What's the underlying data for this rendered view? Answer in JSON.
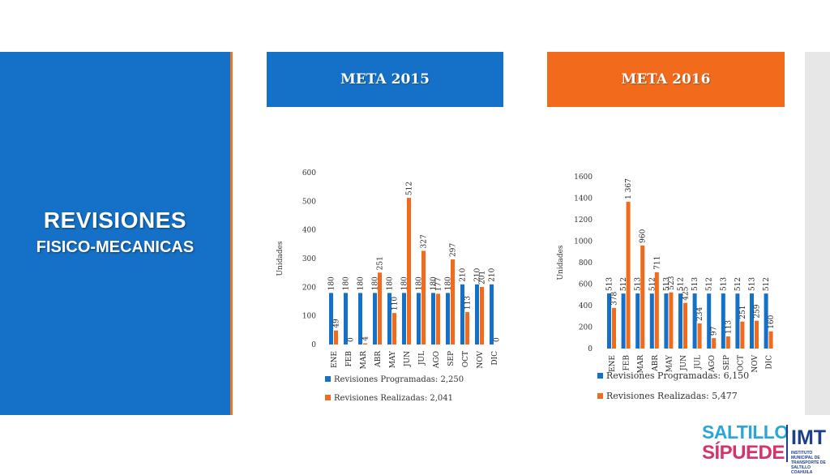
{
  "slide": {
    "title_line1": "REVISIONES",
    "title_line2": "FISICO-MECANICAS",
    "meta_2015": "META 2015",
    "meta_2016": "META 2016"
  },
  "logo": {
    "line1": "SALTILLO",
    "line2": "SÍPUEDE",
    "org": "IMT",
    "org_sub": "INSTITUTO MUNICIPAL DE TRANSPORTE DE SALTILLO COAHUILA"
  },
  "colors": {
    "blue": "#1570c8",
    "orange": "#f26a1b"
  },
  "chart_data": [
    {
      "type": "bar",
      "ylabel": "Unidades",
      "categories": [
        "ENE",
        "FEB",
        "MAR",
        "ABR",
        "MAY",
        "JUN",
        "JUL",
        "AGO",
        "SEP",
        "OCT",
        "NOV",
        "DIC"
      ],
      "ylim": [
        0,
        600
      ],
      "yticks": [
        0,
        100,
        200,
        300,
        400,
        500,
        600
      ],
      "series": [
        {
          "name": "Revisiones Programadas",
          "legend_text": "Revisiones Programadas: 2,250",
          "color": "#1570c8",
          "values": [
            180,
            180,
            180,
            180,
            180,
            180,
            180,
            180,
            180,
            210,
            210,
            210
          ],
          "labels": [
            "180",
            "180",
            "180",
            "180",
            "180",
            "180",
            "180",
            "180",
            "180",
            "210",
            "210",
            "210"
          ]
        },
        {
          "name": "Revisiones Realizadas",
          "legend_text": "Revisiones Realizadas: 2,041",
          "color": "#f26a1b",
          "values": [
            49,
            0,
            4,
            251,
            110,
            512,
            327,
            177,
            297,
            113,
            201,
            0
          ],
          "labels": [
            "49",
            "0",
            "4",
            "251",
            "110",
            "512",
            "327",
            "177",
            "297",
            "113",
            "201",
            "0"
          ]
        }
      ]
    },
    {
      "type": "bar",
      "ylabel": "Unidades",
      "categories": [
        "ENE",
        "FEB",
        "MAR",
        "ABR",
        "MAY",
        "JUN",
        "JUL",
        "AGO",
        "SEP",
        "OCT",
        "NOV",
        "DIC"
      ],
      "ylim": [
        0,
        1600
      ],
      "yticks": [
        0,
        200,
        400,
        600,
        800,
        1000,
        1200,
        1400,
        1600
      ],
      "series": [
        {
          "name": "Revisiones Programadas",
          "legend_text": "Revisiones Programadas: 6,150",
          "color": "#1570c8",
          "values": [
            513,
            512,
            513,
            512,
            513,
            512,
            513,
            512,
            513,
            512,
            513,
            512
          ],
          "labels": [
            "513",
            "512",
            "513",
            "512",
            "513",
            "512",
            "513",
            "512",
            "513",
            "512",
            "513",
            "512"
          ]
        },
        {
          "name": "Revisiones Realizadas",
          "legend_text": "Revisiones Realizadas: 5,477",
          "color": "#f26a1b",
          "values": [
            378,
            1367,
            960,
            711,
            523,
            425,
            234,
            97,
            113,
            251,
            259,
            160
          ],
          "labels": [
            "378",
            "1 367",
            "960",
            "711",
            "523",
            "425",
            "234",
            "97",
            "113",
            "251",
            "259",
            "160"
          ]
        }
      ]
    }
  ]
}
